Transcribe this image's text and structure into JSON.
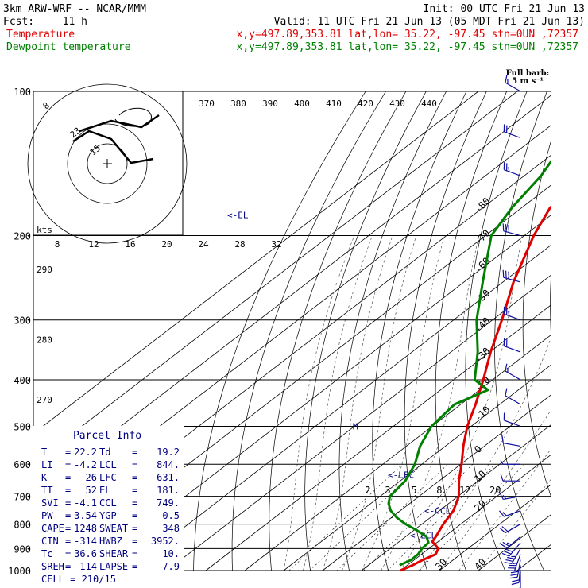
{
  "header": {
    "title": "3km ARW-WRF -- NCAR/MMM",
    "init": "Init: 00 UTC Fri 21 Jun 13",
    "fcst_label": "Fcst:",
    "fcst_value": "11 h",
    "valid": "Valid: 11 UTC Fri 21 Jun 13 (05 MDT Fri 21 Jun 13)"
  },
  "legend": [
    {
      "name": "Temperature",
      "color": "#e00000",
      "info": "x,y=497.89,353.81   lat,lon= 35.22, -97.45   stn=0UN ,72357"
    },
    {
      "name": "Dewpoint temperature",
      "color": "#008000",
      "info": "x,y=497.89,353.81   lat,lon= 35.22, -97.45   stn=0UN ,72357"
    }
  ],
  "colors": {
    "temperature": "#e00000",
    "dewpoint": "#008000",
    "axes": "#000000",
    "annotation": "#000080",
    "barbs": "#1010a0"
  },
  "barb_key": {
    "line1": "Full barb:",
    "line2": "5 m s⁻¹"
  },
  "parcel_info": {
    "title": "Parcel Info",
    "rows": [
      [
        "T",
        "=",
        "22.2",
        "Td",
        "=",
        "19.2"
      ],
      [
        "LI",
        "=",
        "-4.2",
        "LCL",
        "=",
        "844."
      ],
      [
        "K",
        "=",
        "26",
        "LFC",
        "=",
        "631."
      ],
      [
        "TT",
        "=",
        "52",
        "EL",
        "=",
        "181."
      ],
      [
        "SVI",
        "=",
        "-4.1",
        "CCL",
        "=",
        "749."
      ],
      [
        "PW",
        "=",
        "3.54",
        "YGP",
        "=",
        "0.5"
      ],
      [
        "CAPE",
        "=",
        "1248",
        "SWEAT",
        "=",
        "348"
      ],
      [
        "CIN",
        "=",
        "-314",
        "HWBZ",
        "=",
        "3952."
      ],
      [
        "Tc",
        "=",
        "36.6",
        "SHEAR",
        "=",
        "10."
      ],
      [
        "SREH",
        "=",
        "114",
        "LAPSE",
        "=",
        "7.9"
      ]
    ],
    "cell": "CELL = 210/15"
  },
  "hodograph": {
    "units": "kts",
    "ring_labels": [
      "8",
      "23",
      "15"
    ],
    "speed_ticks": [
      "8",
      "12",
      "16",
      "20",
      "24",
      "28",
      "32"
    ]
  },
  "annotations": [
    {
      "text": "<-EL",
      "p": 181
    },
    {
      "text": "M",
      "p": 500
    },
    {
      "text": "<-LFC",
      "p": 631
    },
    {
      "text": "<-CCL",
      "p": 749
    },
    {
      "text": "<-LCL",
      "p": 844
    }
  ],
  "theta_labels": [
    {
      "text": "290",
      "p": 235
    },
    {
      "text": "280",
      "p": 330
    },
    {
      "text": "270",
      "p": 440
    }
  ],
  "top_theta_labels": [
    "370",
    "380",
    "390",
    "400",
    "410",
    "420",
    "430",
    "440"
  ],
  "mixing_ratio_labels": [
    "2",
    "3",
    "5",
    "8",
    "12",
    "20"
  ],
  "chart_data": {
    "type": "line",
    "title": "",
    "xlabel": "",
    "ylabel": "",
    "pressure_levels": [
      100,
      200,
      300,
      400,
      500,
      600,
      700,
      800,
      900,
      1000
    ],
    "isotherm_labels": [
      -80,
      -70,
      -60,
      -50,
      -40,
      -30,
      -20,
      -10,
      0,
      10,
      20,
      30,
      40
    ],
    "series": [
      {
        "name": "Temperature",
        "points": [
          [
            1000,
            20
          ],
          [
            975,
            21.3
          ],
          [
            950,
            22.2
          ],
          [
            925,
            23.6
          ],
          [
            900,
            22.4
          ],
          [
            870,
            18.5
          ],
          [
            850,
            17.8
          ],
          [
            800,
            15.5
          ],
          [
            750,
            13.6
          ],
          [
            700,
            10.2
          ],
          [
            650,
            5.1
          ],
          [
            600,
            0.2
          ],
          [
            550,
            -5.4
          ],
          [
            500,
            -11
          ],
          [
            450,
            -16.2
          ],
          [
            400,
            -22.4
          ],
          [
            350,
            -29.8
          ],
          [
            300,
            -37.6
          ],
          [
            250,
            -47.3
          ],
          [
            200,
            -57.6
          ],
          [
            175,
            -62.7
          ],
          [
            150,
            -64.5
          ],
          [
            130,
            -61.6
          ],
          [
            115,
            -58.8
          ],
          [
            100,
            -57.6
          ]
        ]
      },
      {
        "name": "Dewpoint temperature",
        "points": [
          [
            975,
            18
          ],
          [
            950,
            19.2
          ],
          [
            925,
            19.1
          ],
          [
            900,
            18.2
          ],
          [
            875,
            17.9
          ],
          [
            850,
            15.4
          ],
          [
            825,
            10.9
          ],
          [
            800,
            5.8
          ],
          [
            775,
            1.3
          ],
          [
            750,
            -2.5
          ],
          [
            725,
            -5.4
          ],
          [
            700,
            -7.5
          ],
          [
            650,
            -8.7
          ],
          [
            600,
            -11.8
          ],
          [
            550,
            -16.5
          ],
          [
            500,
            -20.2
          ],
          [
            450,
            -21.6
          ],
          [
            420,
            -17.8
          ],
          [
            400,
            -24.6
          ],
          [
            350,
            -33.1
          ],
          [
            300,
            -44.1
          ],
          [
            250,
            -55.2
          ],
          [
            200,
            -68.5
          ],
          [
            175,
            -72.5
          ],
          [
            150,
            -75.7
          ],
          [
            130,
            -80.3
          ],
          [
            115,
            -84.2
          ],
          [
            100,
            -86.4
          ]
        ]
      }
    ],
    "wind_barbs": [
      {
        "p": 1000,
        "speed": 10,
        "dir": 180
      },
      {
        "p": 975,
        "speed": 20,
        "dir": 185
      },
      {
        "p": 950,
        "speed": 30,
        "dir": 190
      },
      {
        "p": 925,
        "speed": 35,
        "dir": 200
      },
      {
        "p": 900,
        "speed": 35,
        "dir": 210
      },
      {
        "p": 875,
        "speed": 30,
        "dir": 220
      },
      {
        "p": 850,
        "speed": 25,
        "dir": 230
      },
      {
        "p": 800,
        "speed": 20,
        "dir": 240
      },
      {
        "p": 750,
        "speed": 15,
        "dir": 250
      },
      {
        "p": 700,
        "speed": 15,
        "dir": 260
      },
      {
        "p": 650,
        "speed": 10,
        "dir": 270
      },
      {
        "p": 600,
        "speed": 5,
        "dir": 270
      },
      {
        "p": 550,
        "speed": 10,
        "dir": 280
      },
      {
        "p": 500,
        "speed": 10,
        "dir": 290
      },
      {
        "p": 450,
        "speed": 10,
        "dir": 300
      },
      {
        "p": 400,
        "speed": 15,
        "dir": 300
      },
      {
        "p": 350,
        "speed": 20,
        "dir": 290
      },
      {
        "p": 300,
        "speed": 25,
        "dir": 290
      },
      {
        "p": 250,
        "speed": 30,
        "dir": 285
      },
      {
        "p": 200,
        "speed": 30,
        "dir": 285
      },
      {
        "p": 150,
        "speed": 25,
        "dir": 290
      },
      {
        "p": 125,
        "speed": 20,
        "dir": 290
      },
      {
        "p": 100,
        "speed": 15,
        "dir": 300
      }
    ]
  }
}
